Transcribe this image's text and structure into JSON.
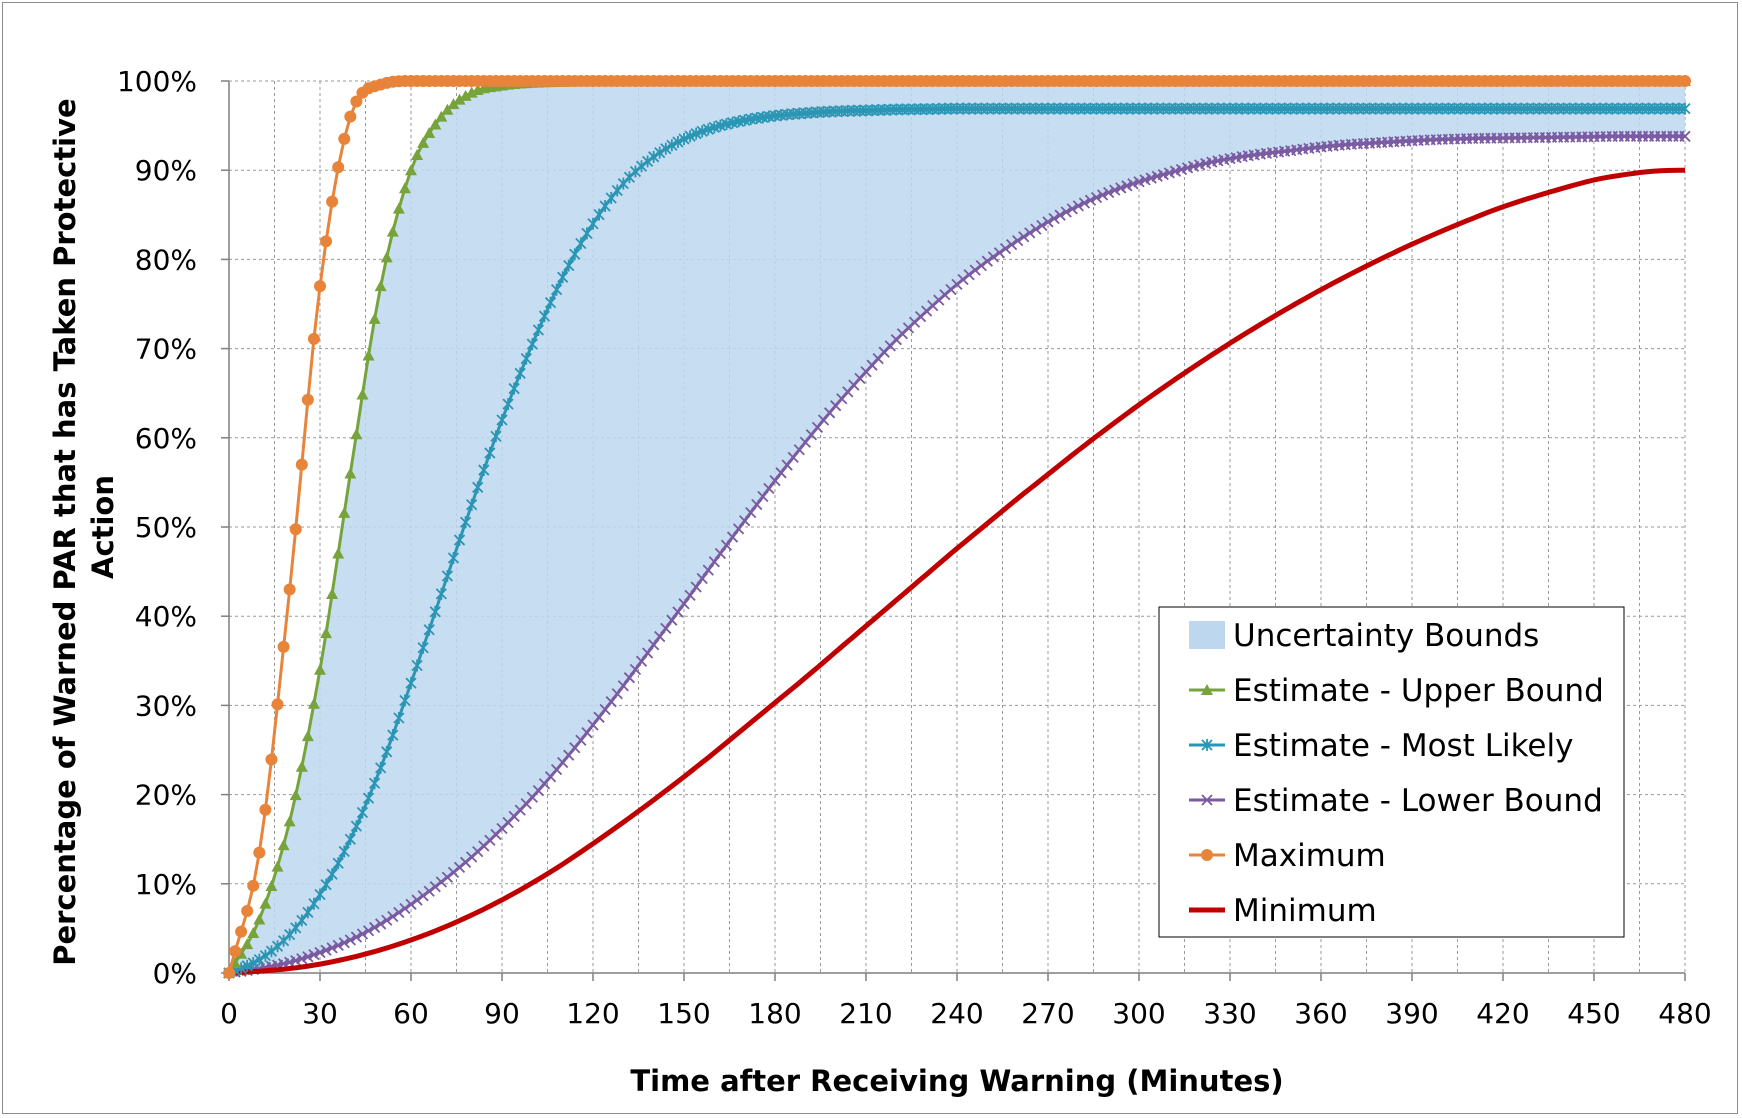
{
  "chart_data": {
    "type": "line",
    "title": "",
    "xlabel": "Time after Receiving Warning (Minutes)",
    "ylabel": "Percentage of Warned PAR that has Taken Protective Action",
    "ylabel_lines": [
      "Percentage of Warned PAR that has Taken Protective",
      "Action"
    ],
    "xlim": [
      0,
      480
    ],
    "ylim": [
      0,
      100
    ],
    "x_ticks": [
      0,
      30,
      60,
      90,
      120,
      150,
      180,
      210,
      240,
      270,
      300,
      330,
      360,
      390,
      420,
      450,
      480
    ],
    "x_tick_labels": [
      "0",
      "30",
      "60",
      "90",
      "120",
      "150",
      "180",
      "210",
      "240",
      "270",
      "300",
      "330",
      "360",
      "390",
      "420",
      "450",
      "480"
    ],
    "y_ticks": [
      0,
      10,
      20,
      30,
      40,
      50,
      60,
      70,
      80,
      90,
      100
    ],
    "y_tick_labels": [
      "0%",
      "10%",
      "20%",
      "30%",
      "40%",
      "50%",
      "60%",
      "70%",
      "80%",
      "90%",
      "100%"
    ],
    "grid": true,
    "minor_x_grid_step": 15,
    "legend_position": "lower-right",
    "x": [
      0,
      10,
      20,
      30,
      40,
      50,
      60,
      70,
      80,
      90,
      100,
      110,
      120,
      130,
      140,
      150,
      160,
      170,
      180,
      190,
      200,
      210,
      220,
      230,
      240,
      250,
      260,
      270,
      280,
      290,
      300,
      310,
      320,
      330,
      340,
      350,
      360,
      370,
      380,
      390,
      400,
      410,
      420,
      430,
      440,
      450,
      460,
      470,
      480
    ],
    "series": [
      {
        "name": "Uncertainty Bounds",
        "kind": "band",
        "color": "#bdd7ee",
        "lower": [
          0,
          0.5,
          1.2,
          2.3,
          3.7,
          5.5,
          7.7,
          10.2,
          13.0,
          16.2,
          19.7,
          23.6,
          27.8,
          32.2,
          36.8,
          41.4,
          46.1,
          50.7,
          55.2,
          59.5,
          63.6,
          67.4,
          71.0,
          74.2,
          77.2,
          79.8,
          82.1,
          84.2,
          86.0,
          87.5,
          88.7,
          89.7,
          90.6,
          91.3,
          91.8,
          92.2,
          92.6,
          92.9,
          93.1,
          93.3,
          93.45,
          93.55,
          93.6,
          93.65,
          93.7,
          93.75,
          93.8,
          93.8,
          93.8
        ],
        "upper": [
          0,
          6,
          17,
          34,
          56,
          77,
          90,
          96,
          98.7,
          99.5,
          99.8,
          99.9,
          100,
          100,
          100,
          100,
          100,
          100,
          100,
          100,
          100,
          100,
          100,
          100,
          100,
          100,
          100,
          100,
          100,
          100,
          100,
          100,
          100,
          100,
          100,
          100,
          100,
          100,
          100,
          100,
          100,
          100,
          100,
          100,
          100,
          100,
          100,
          100,
          100
        ]
      },
      {
        "name": "Estimate - Upper Bound",
        "color": "#77a33c",
        "marker": "triangle",
        "values": [
          0,
          6,
          17,
          34,
          56,
          77,
          90,
          96,
          98.7,
          99.5,
          99.8,
          99.9,
          100,
          100,
          100,
          100,
          100,
          100,
          100,
          100,
          100,
          100,
          100,
          100,
          100,
          100,
          100,
          100,
          100,
          100,
          100,
          100,
          100,
          100,
          100,
          100,
          100,
          100,
          100,
          100,
          100,
          100,
          100,
          100,
          100,
          100,
          100,
          100,
          100
        ]
      },
      {
        "name": "Estimate - Most Likely",
        "color": "#2b95b4",
        "marker": "star",
        "values": [
          0,
          1.5,
          4.3,
          8.8,
          15,
          23,
          32.5,
          42.5,
          52.5,
          62,
          70.5,
          78,
          84,
          88.5,
          91.5,
          93.5,
          94.8,
          95.6,
          96.1,
          96.4,
          96.6,
          96.7,
          96.8,
          96.85,
          96.9,
          96.9,
          96.9,
          96.9,
          96.9,
          96.9,
          96.9,
          96.9,
          96.9,
          96.9,
          96.9,
          96.9,
          96.9,
          96.9,
          96.9,
          96.9,
          96.9,
          96.9,
          96.9,
          96.9,
          96.9,
          96.9,
          96.9,
          96.9,
          96.9
        ]
      },
      {
        "name": "Estimate - Lower Bound",
        "color": "#7a5ba1",
        "marker": "x",
        "values": [
          0,
          0.5,
          1.2,
          2.3,
          3.7,
          5.5,
          7.7,
          10.2,
          13.0,
          16.2,
          19.7,
          23.6,
          27.8,
          32.2,
          36.8,
          41.4,
          46.1,
          50.7,
          55.2,
          59.5,
          63.6,
          67.4,
          71.0,
          74.2,
          77.2,
          79.8,
          82.1,
          84.2,
          86.0,
          87.5,
          88.7,
          89.7,
          90.6,
          91.3,
          91.8,
          92.2,
          92.6,
          92.9,
          93.1,
          93.3,
          93.45,
          93.55,
          93.6,
          93.65,
          93.7,
          93.75,
          93.8,
          93.8,
          93.8
        ]
      },
      {
        "name": "Maximum",
        "color": "#e8843a",
        "marker": "circle",
        "values": [
          0,
          13.5,
          43,
          77,
          96,
          99.6,
          100,
          100,
          100,
          100,
          100,
          100,
          100,
          100,
          100,
          100,
          100,
          100,
          100,
          100,
          100,
          100,
          100,
          100,
          100,
          100,
          100,
          100,
          100,
          100,
          100,
          100,
          100,
          100,
          100,
          100,
          100,
          100,
          100,
          100,
          100,
          100,
          100,
          100,
          100,
          100,
          100,
          100,
          100
        ]
      },
      {
        "name": "Minimum",
        "color": "#c00000",
        "marker": "none",
        "values": [
          0,
          0.2,
          0.5,
          1.0,
          1.7,
          2.6,
          3.7,
          5.0,
          6.5,
          8.2,
          10.1,
          12.2,
          14.5,
          16.9,
          19.4,
          22.0,
          24.7,
          27.5,
          30.3,
          33.1,
          36.0,
          38.9,
          41.8,
          44.7,
          47.6,
          50.4,
          53.2,
          55.9,
          58.6,
          61.2,
          63.7,
          66.1,
          68.4,
          70.6,
          72.7,
          74.7,
          76.6,
          78.4,
          80.1,
          81.7,
          83.2,
          84.6,
          85.9,
          87.0,
          88.0,
          88.9,
          89.5,
          89.9,
          90.0
        ]
      }
    ]
  }
}
